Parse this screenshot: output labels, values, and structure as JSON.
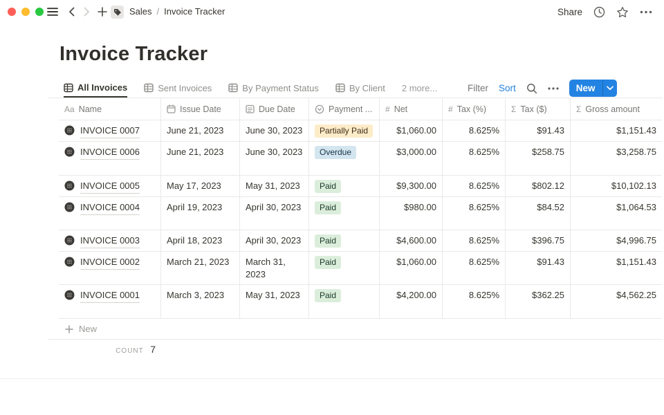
{
  "topbar": {
    "breadcrumb": {
      "parent": "Sales",
      "separator": "/",
      "current": "Invoice Tracker"
    },
    "share_label": "Share"
  },
  "page": {
    "title": "Invoice Tracker"
  },
  "views": {
    "tabs": [
      {
        "label": "All Invoices",
        "active": true
      },
      {
        "label": "Sent Invoices",
        "active": false
      },
      {
        "label": "By Payment Status",
        "active": false
      },
      {
        "label": "By Client",
        "active": false
      }
    ],
    "more_label": "2 more...",
    "filter_label": "Filter",
    "sort_label": "Sort",
    "new_button_label": "New"
  },
  "table": {
    "columns": [
      {
        "label": "Name",
        "icon": "text-icon"
      },
      {
        "label": "Issue Date",
        "icon": "calendar-icon"
      },
      {
        "label": "Due Date",
        "icon": "calendar-icon"
      },
      {
        "label": "Payment ...",
        "icon": "select-icon"
      },
      {
        "label": "Net",
        "icon": "number-icon"
      },
      {
        "label": "Tax (%)",
        "icon": "number-icon"
      },
      {
        "label": "Tax ($)",
        "icon": "formula-icon"
      },
      {
        "label": "Gross amount",
        "icon": "formula-icon"
      }
    ],
    "rows": [
      {
        "name": "INVOICE 0007",
        "issue_date": "June 21, 2023",
        "due_date": "June 30, 2023",
        "status": "Partially Paid",
        "status_color": "yellow",
        "net": "$1,060.00",
        "tax_pct": "8.625%",
        "tax_usd": "$91.43",
        "gross": "$1,151.43"
      },
      {
        "name": "INVOICE 0006",
        "issue_date": "June 21, 2023",
        "due_date": "June 30, 2023",
        "status": "Overdue",
        "status_color": "blue",
        "net": "$3,000.00",
        "tax_pct": "8.625%",
        "tax_usd": "$258.75",
        "gross": "$3,258.75"
      },
      {
        "name": "INVOICE 0005",
        "issue_date": "May 17, 2023",
        "due_date": "May 31, 2023",
        "status": "Paid",
        "status_color": "green",
        "net": "$9,300.00",
        "tax_pct": "8.625%",
        "tax_usd": "$802.12",
        "gross": "$10,102.13"
      },
      {
        "name": "INVOICE 0004",
        "issue_date": "April 19, 2023",
        "due_date": "April 30, 2023",
        "status": "Paid",
        "status_color": "green",
        "net": "$980.00",
        "tax_pct": "8.625%",
        "tax_usd": "$84.52",
        "gross": "$1,064.53"
      },
      {
        "name": "INVOICE 0003",
        "issue_date": "April 18, 2023",
        "due_date": "April 30, 2023",
        "status": "Paid",
        "status_color": "green",
        "net": "$4,600.00",
        "tax_pct": "8.625%",
        "tax_usd": "$396.75",
        "gross": "$4,996.75"
      },
      {
        "name": "INVOICE 0002",
        "issue_date": "March 21, 2023",
        "due_date": "March 31, 2023",
        "status": "Paid",
        "status_color": "green",
        "net": "$1,060.00",
        "tax_pct": "8.625%",
        "tax_usd": "$91.43",
        "gross": "$1,151.43"
      },
      {
        "name": "INVOICE 0001",
        "issue_date": "March 3, 2023",
        "due_date": "May 31, 2023",
        "status": "Paid",
        "status_color": "green",
        "net": "$4,200.00",
        "tax_pct": "8.625%",
        "tax_usd": "$362.25",
        "gross": "$4,562.25"
      }
    ],
    "new_row_label": "New",
    "count_label": "COUNT",
    "count_value": "7"
  },
  "colors": {
    "accent_blue": "#2383e2",
    "badge_yellow_bg": "#fdecc8",
    "badge_yellow_text": "#402c1b",
    "badge_blue_bg": "#d3e5ef",
    "badge_blue_text": "#183347",
    "badge_green_bg": "#dbeddb",
    "badge_green_text": "#1c3829",
    "divider": "#e9e9e7",
    "muted_text": "#787774"
  }
}
